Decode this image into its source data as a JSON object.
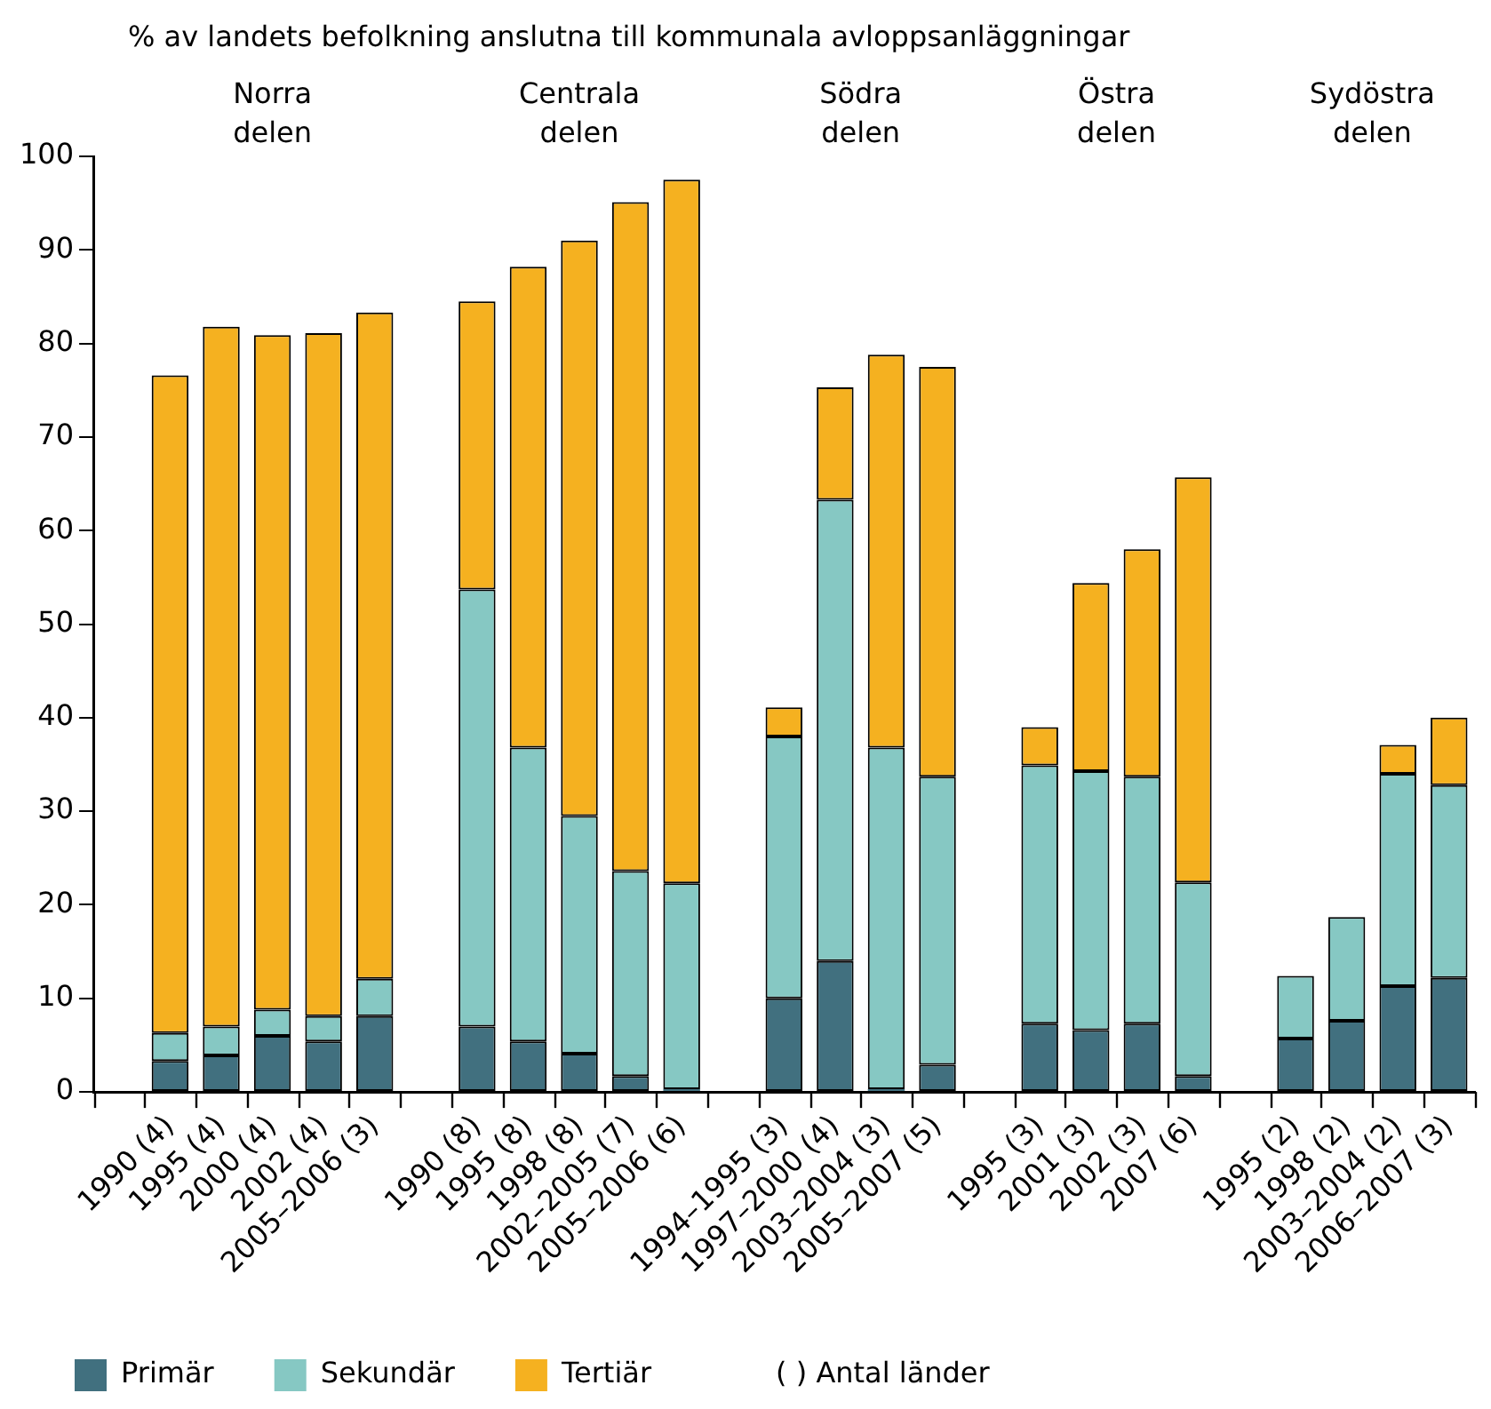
{
  "chart_data": {
    "type": "bar",
    "stacked": true,
    "ylabel": "% av landets befolkning anslutna till kommunala avloppsanläggningar",
    "categories": [
      null,
      "1990 (4)",
      "1995 (4)",
      "2000 (4)",
      "2002 (4)",
      "2005–2006 (3)",
      null,
      "1990 (8)",
      "1995 (8)",
      "1998 (8)",
      "2002–2005 (7)",
      "2005–2006 (6)",
      null,
      "1994–1995 (3)",
      "1997–2000 (4)",
      "2003–2004 (3)",
      "2005–2007 (5)",
      null,
      "1995 (3)",
      "2001 (3)",
      "2002 (3)",
      "2007 (6)",
      null,
      "1995 (2)",
      "1998 (2)",
      "2003–2004 (2)",
      "2006–2007 (3)"
    ],
    "series": [
      {
        "name": "Primär",
        "color": "#41707f",
        "values": [
          null,
          3.3,
          3.9,
          6.0,
          5.4,
          8.1,
          null,
          7.0,
          5.4,
          4.1,
          1.7,
          0.3,
          null,
          10.0,
          14.0,
          0.3,
          2.9,
          null,
          7.3,
          6.6,
          7.3,
          1.7,
          null,
          5.7,
          7.6,
          11.3,
          12.2
        ]
      },
      {
        "name": "Sekundär",
        "color": "#86c8c3",
        "values": [
          null,
          3.0,
          3.1,
          2.8,
          2.7,
          4.0,
          null,
          46.7,
          31.4,
          25.4,
          21.9,
          22.0,
          null,
          28.0,
          49.3,
          36.5,
          30.8,
          null,
          27.6,
          27.7,
          26.4,
          20.7,
          null,
          6.7,
          11.1,
          22.7,
          20.6
        ]
      },
      {
        "name": "Tertiär",
        "color": "#f5b120",
        "values": [
          null,
          70.3,
          74.8,
          72.1,
          73.0,
          71.2,
          null,
          30.8,
          51.4,
          61.5,
          71.5,
          75.2,
          null,
          3.1,
          12.0,
          42.0,
          43.8,
          null,
          4.1,
          20.1,
          24.3,
          43.3,
          null,
          null,
          null,
          3.1,
          7.2
        ]
      }
    ],
    "ylim": [
      0,
      100
    ],
    "yticks": [
      0,
      10,
      20,
      30,
      40,
      50,
      60,
      70,
      80,
      90,
      100
    ],
    "grid": false,
    "legend": "bottom",
    "annotations": [
      "Norra delen",
      "Centrala delen",
      "Södra delen",
      "Östra delen",
      "Sydöstra delen",
      "( ) Antal länder"
    ]
  }
}
